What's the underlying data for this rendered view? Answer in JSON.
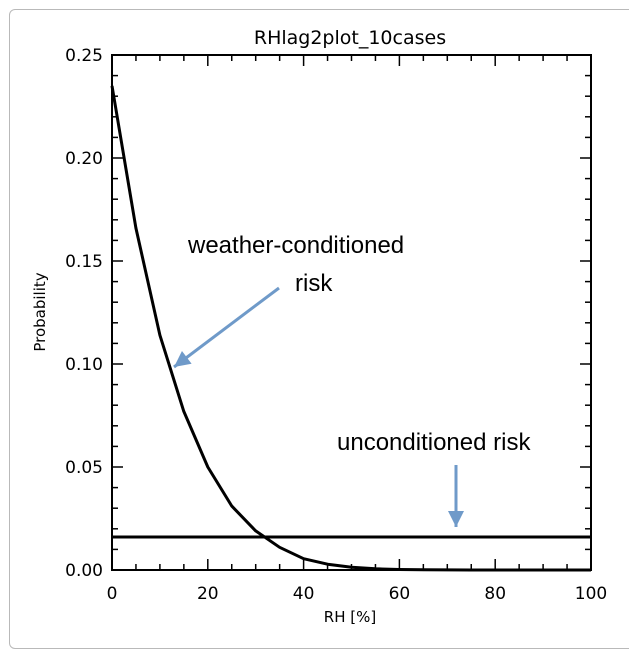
{
  "chart_data": {
    "type": "line",
    "title": "RHlag2plot_10cases",
    "xlabel": "RH [%]",
    "ylabel": "Probability",
    "xlim": [
      0,
      100
    ],
    "ylim": [
      0,
      0.25
    ],
    "grid": false,
    "x_ticks": [
      "0",
      "20",
      "40",
      "60",
      "80",
      "100"
    ],
    "y_ticks": [
      "0.00",
      "0.05",
      "0.10",
      "0.15",
      "0.20",
      "0.25"
    ],
    "series": [
      {
        "x": [
          0,
          5,
          10,
          15,
          20,
          25,
          30,
          35,
          40,
          45,
          50,
          55,
          60,
          65,
          70,
          75,
          80,
          90,
          100
        ],
        "y": [
          0.235,
          0.166,
          0.114,
          0.077,
          0.05,
          0.031,
          0.019,
          0.011,
          0.0055,
          0.0028,
          0.0013,
          0.0006,
          0.00025,
          0.0001,
          4e-05,
          1e-05,
          0.0,
          0.0,
          0.0
        ],
        "color": "#000000"
      },
      {
        "x": [
          0,
          100
        ],
        "y": [
          0.016,
          0.016
        ],
        "color": "#000000"
      }
    ],
    "annotations": {
      "weather_line1": "weather-conditioned",
      "weather_line2": "risk",
      "unconditioned": "unconditioned risk"
    },
    "arrow_color": "#6f9ac9"
  }
}
